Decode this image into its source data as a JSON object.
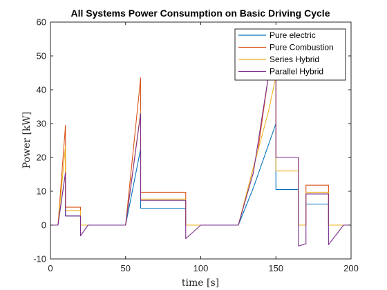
{
  "chart_data": {
    "type": "line",
    "title": "All Systems Power Consumption on Basic Driving Cycle",
    "xlabel": "time [s]",
    "ylabel": "Power [kW]",
    "xlim": [
      0,
      200
    ],
    "ylim": [
      -10,
      60
    ],
    "xticks": [
      0,
      50,
      100,
      150,
      200
    ],
    "yticks": [
      -10,
      0,
      10,
      20,
      30,
      40,
      50,
      60
    ],
    "grid": false,
    "legend_position": "top-right",
    "series": [
      {
        "name": "Pure electric",
        "color": "#0072BD",
        "points": [
          [
            0,
            0
          ],
          [
            5,
            0
          ],
          [
            10,
            15.5
          ],
          [
            10,
            2.7
          ],
          [
            20,
            2.7
          ],
          [
            20,
            0
          ],
          [
            50,
            0
          ],
          [
            60,
            22.5
          ],
          [
            60,
            5
          ],
          [
            90,
            5
          ],
          [
            90,
            0
          ],
          [
            125,
            0
          ],
          [
            135,
            11
          ],
          [
            150,
            30
          ],
          [
            150,
            10.5
          ],
          [
            165,
            10.5
          ],
          [
            165,
            0
          ],
          [
            170,
            0
          ],
          [
            170,
            6.2
          ],
          [
            185,
            6.2
          ],
          [
            185,
            0
          ],
          [
            200,
            0
          ]
        ]
      },
      {
        "name": "Pure Combustion",
        "color": "#D95319",
        "points": [
          [
            0,
            0
          ],
          [
            5,
            0
          ],
          [
            10,
            29.5
          ],
          [
            10,
            5.3
          ],
          [
            20,
            5.3
          ],
          [
            20,
            0
          ],
          [
            50,
            0
          ],
          [
            60,
            43.5
          ],
          [
            60,
            9.7
          ],
          [
            90,
            9.7
          ],
          [
            90,
            0
          ],
          [
            125,
            0
          ],
          [
            138,
            22
          ],
          [
            145,
            44
          ],
          [
            150,
            44
          ],
          [
            150,
            20
          ],
          [
            165,
            20
          ],
          [
            165,
            0
          ],
          [
            170,
            0
          ],
          [
            170,
            11.8
          ],
          [
            185,
            11.8
          ],
          [
            185,
            0
          ],
          [
            200,
            0
          ]
        ]
      },
      {
        "name": "Series Hybrid",
        "color": "#EDB120",
        "points": [
          [
            0,
            0
          ],
          [
            5,
            0
          ],
          [
            10,
            23.5
          ],
          [
            10,
            4.3
          ],
          [
            20,
            4.3
          ],
          [
            20,
            0
          ],
          [
            50,
            0
          ],
          [
            60,
            33.5
          ],
          [
            60,
            7.7
          ],
          [
            90,
            7.7
          ],
          [
            90,
            0
          ],
          [
            125,
            0
          ],
          [
            135,
            17
          ],
          [
            145,
            33.5
          ],
          [
            150,
            44
          ],
          [
            150,
            16
          ],
          [
            165,
            16
          ],
          [
            165,
            0
          ],
          [
            170,
            0
          ],
          [
            170,
            9.7
          ],
          [
            185,
            9.7
          ],
          [
            185,
            0
          ],
          [
            200,
            0
          ]
        ]
      },
      {
        "name": "Parallel Hybrid",
        "color": "#7E2F8E",
        "points": [
          [
            0,
            0
          ],
          [
            5,
            0
          ],
          [
            10,
            15.5
          ],
          [
            10,
            2.7
          ],
          [
            20,
            2.7
          ],
          [
            20,
            -3.2
          ],
          [
            25,
            0
          ],
          [
            50,
            0
          ],
          [
            60,
            33
          ],
          [
            60,
            7.3
          ],
          [
            90,
            7.3
          ],
          [
            90,
            -4
          ],
          [
            100,
            0
          ],
          [
            125,
            0
          ],
          [
            135,
            15.5
          ],
          [
            145,
            44
          ],
          [
            150,
            44
          ],
          [
            150,
            20
          ],
          [
            165,
            20
          ],
          [
            165,
            -6.2
          ],
          [
            170,
            -5.5
          ],
          [
            170,
            9.2
          ],
          [
            185,
            9.2
          ],
          [
            185,
            -5.8
          ],
          [
            195,
            0
          ],
          [
            200,
            0
          ]
        ]
      }
    ]
  }
}
